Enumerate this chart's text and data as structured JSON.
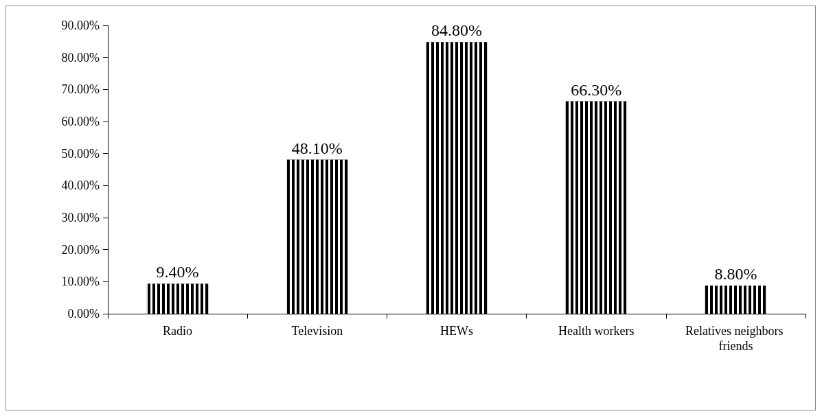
{
  "chart_data": {
    "type": "bar",
    "categories": [
      "Radio",
      "Television",
      "HEWs",
      "Health workers",
      "Relatives neighbors friends"
    ],
    "values": [
      9.4,
      48.1,
      84.8,
      66.3,
      8.8
    ],
    "value_labels": [
      "9.40%",
      "48.10%",
      "84.80%",
      "66.30%",
      "8.80%"
    ],
    "color": "#000000",
    "ylim": [
      0,
      90
    ],
    "yticks": [
      {
        "value": 0,
        "label": "0.00%"
      },
      {
        "value": 10,
        "label": "10.00%"
      },
      {
        "value": 20,
        "label": "20.00%"
      },
      {
        "value": 30,
        "label": "30.00%"
      },
      {
        "value": 40,
        "label": "40.00%"
      },
      {
        "value": 50,
        "label": "50.00%"
      },
      {
        "value": 60,
        "label": "60.00%"
      },
      {
        "value": 70,
        "label": "70.00%"
      },
      {
        "value": 80,
        "label": "80.00%"
      },
      {
        "value": 90,
        "label": "90.00%"
      }
    ],
    "grid": false
  }
}
